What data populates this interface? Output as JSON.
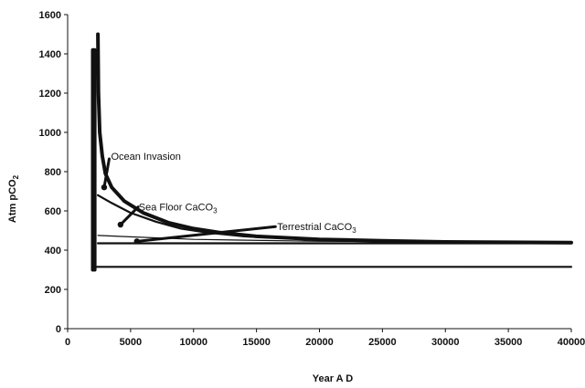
{
  "chart_data": {
    "type": "line",
    "title": "",
    "xlabel": "Year A D",
    "ylabel_main": "Atm pCO",
    "ylabel_sub": "2",
    "xlim": [
      0,
      40000
    ],
    "ylim": [
      0,
      1600
    ],
    "xticks": [
      0,
      5000,
      10000,
      15000,
      20000,
      25000,
      30000,
      35000,
      40000
    ],
    "yticks": [
      0,
      200,
      400,
      600,
      800,
      1000,
      1200,
      1400,
      1600
    ],
    "grid": false,
    "legend": "none",
    "colors": {
      "line": "#111111"
    },
    "series": [
      {
        "id": "spike",
        "stroke": "heavy",
        "points": [
          [
            2000,
            300
          ],
          [
            2000,
            1420
          ],
          [
            2150,
            1420
          ],
          [
            2150,
            300
          ]
        ]
      },
      {
        "id": "ocean-invasion-curve",
        "stroke": "heavy",
        "points": [
          [
            2400,
            1500
          ],
          [
            2450,
            1200
          ],
          [
            2550,
            1000
          ],
          [
            2750,
            880
          ],
          [
            3000,
            790
          ],
          [
            3500,
            720
          ],
          [
            4500,
            650
          ],
          [
            6000,
            590
          ],
          [
            8000,
            540
          ],
          [
            10000,
            510
          ],
          [
            12000,
            490
          ],
          [
            15000,
            470
          ],
          [
            20000,
            455
          ],
          [
            25000,
            448
          ],
          [
            30000,
            442
          ],
          [
            35000,
            440
          ],
          [
            40000,
            438
          ]
        ]
      },
      {
        "id": "sea-floor-curve",
        "stroke": "medium",
        "points": [
          [
            2400,
            680
          ],
          [
            3500,
            640
          ],
          [
            5000,
            590
          ],
          [
            7000,
            545
          ],
          [
            9000,
            510
          ],
          [
            11000,
            490
          ],
          [
            14000,
            470
          ],
          [
            20000,
            452
          ],
          [
            30000,
            442
          ],
          [
            40000,
            437
          ]
        ]
      },
      {
        "id": "terrestrial-line",
        "stroke": "thin",
        "points": [
          [
            2400,
            475
          ],
          [
            10000,
            455
          ],
          [
            20000,
            445
          ],
          [
            40000,
            440
          ]
        ]
      },
      {
        "id": "baseline-440",
        "stroke": "medium",
        "points": [
          [
            2400,
            435
          ],
          [
            40000,
            435
          ]
        ]
      },
      {
        "id": "baseline-300",
        "stroke": "medium",
        "points": [
          [
            2000,
            315
          ],
          [
            40000,
            315
          ]
        ]
      }
    ],
    "annotations": [
      {
        "id": "ocean-invasion",
        "text": "Ocean Invasion",
        "sub": "",
        "at": [
          3300,
          880
        ],
        "from": [
          2900,
          720
        ],
        "to": [
          3300,
          865
        ]
      },
      {
        "id": "sea-floor",
        "text": "Sea Floor CaCO",
        "sub": "3",
        "at": [
          5500,
          620
        ],
        "from": [
          4200,
          530
        ],
        "to": [
          5600,
          620
        ]
      },
      {
        "id": "terrestrial",
        "text": "Terrestrial CaCO",
        "sub": "3",
        "at": [
          16500,
          520
        ],
        "from": [
          5500,
          445
        ],
        "to": [
          16500,
          520
        ]
      }
    ]
  }
}
